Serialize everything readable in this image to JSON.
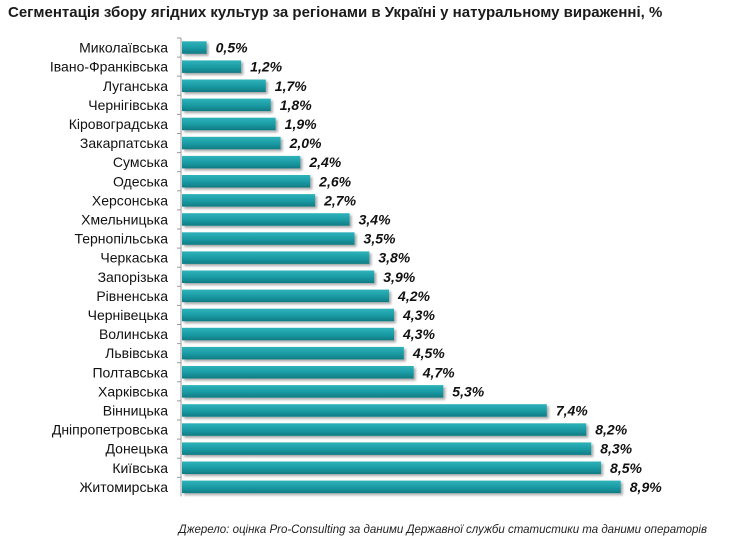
{
  "title": "Сегментація збору ягідних культур за регіонами в Україні у натуральному вираженні, %",
  "source": "Джерело: оцінка Pro-Consulting за даними Державної служби статистики та даними операторів",
  "colors": {
    "bar": "#1a9aa3",
    "bar_dark": "#0f7b83",
    "axis": "#9a9a9a"
  },
  "chart_data": {
    "type": "bar",
    "orientation": "horizontal",
    "title": "Сегментація збору ягідних культур за регіонами в Україні у натуральному вираженні, %",
    "categories": [
      "Миколаївська",
      "Івано-Франківська",
      "Луганська",
      "Чернігівська",
      "Кіровоградська",
      "Закарпатська",
      "Сумська",
      "Одеська",
      "Херсонська",
      "Хмельницька",
      "Тернопільська",
      "Черкаська",
      "Запорізька",
      "Рівненська",
      "Чернівецька",
      "Волинська",
      "Львівська",
      "Полтавська",
      "Харківська",
      "Вінницька",
      "Дніпропетровська",
      "Донецька",
      "Київська",
      "Житомирська"
    ],
    "values": [
      0.5,
      1.2,
      1.7,
      1.8,
      1.9,
      2.0,
      2.4,
      2.6,
      2.7,
      3.4,
      3.5,
      3.8,
      3.9,
      4.2,
      4.3,
      4.3,
      4.5,
      4.7,
      5.3,
      7.4,
      8.2,
      8.3,
      8.5,
      8.9
    ],
    "data_labels": [
      "0,5%",
      "1,2%",
      "1,7%",
      "1,8%",
      "1,9%",
      "2,0%",
      "2,4%",
      "2,6%",
      "2,7%",
      "3,4%",
      "3,5%",
      "3,8%",
      "3,9%",
      "4,2%",
      "4,3%",
      "4,3%",
      "4,5%",
      "4,7%",
      "5,3%",
      "7,4%",
      "8,2%",
      "8,3%",
      "8,5%",
      "8,9%"
    ],
    "grid": false,
    "legend": "none"
  }
}
